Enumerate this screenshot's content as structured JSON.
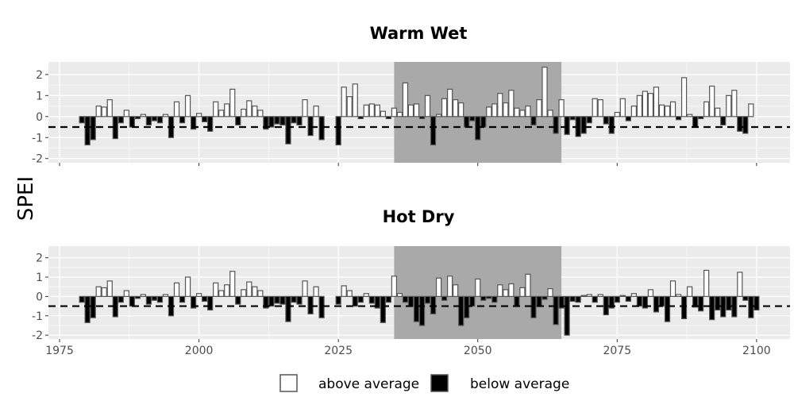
{
  "chart_data": {
    "type": "bar",
    "ylabel": "SPEI",
    "x_ticks": [
      1975,
      2000,
      2025,
      2050,
      2075,
      2100
    ],
    "x_range": [
      1973,
      2106
    ],
    "ylim": [
      -2.2,
      2.6
    ],
    "y_ticks": [
      -2,
      -1,
      0,
      1,
      2
    ],
    "threshold": -0.5,
    "highlight_range": [
      2035,
      2065
    ],
    "legend": {
      "above_label": "above average",
      "below_label": "below average"
    },
    "colors": {
      "above": "#ffffff",
      "below": "#000000",
      "bar_edge": "#555555",
      "panel_bg": "#ebebeb",
      "grid": "#ffffff",
      "highlight": "#a9a9a9",
      "threshold": "#000000"
    },
    "panels": [
      {
        "title": "Warm Wet",
        "segments": [
          {
            "start": 1979,
            "values": [
              -0.3,
              -1.35,
              -1.1,
              0.5,
              0.45,
              0.8,
              -1.05,
              -0.3,
              0.3,
              -0.5,
              -0.1,
              0.1,
              -0.4,
              -0.2,
              -0.3,
              0.1,
              -1.0,
              0.7,
              -0.3,
              1.0,
              -0.6,
              0.15,
              -0.25,
              -0.7,
              0.7,
              0.3,
              0.6,
              1.3,
              -0.4,
              0.35,
              0.75,
              0.5,
              0.3,
              -0.6,
              -0.5,
              -0.35,
              -0.4,
              -1.3,
              -0.3,
              -0.4,
              0.8,
              -0.9,
              0.5,
              -1.1
            ]
          },
          {
            "start": 2025,
            "values": [
              -1.35,
              1.4,
              0.95,
              1.55,
              -0.1,
              0.55,
              0.6,
              0.55,
              0.25,
              -0.1,
              0.4,
              0.2,
              1.6,
              0.55,
              0.6,
              -0.1,
              1.0,
              -1.35,
              0.1,
              0.85,
              1.3,
              0.8,
              0.65,
              -0.5,
              -0.2,
              -1.1,
              -0.5,
              0.45,
              0.6,
              1.1,
              0.65,
              1.25,
              0.4,
              0.3,
              0.5,
              -0.4,
              0.8,
              2.35,
              0.3,
              -0.8,
              0.8,
              -0.85,
              -0.15,
              -0.95,
              -0.8,
              -0.3,
              0.85,
              0.8,
              -0.35,
              -0.8,
              0.2,
              0.85,
              -0.2,
              0.5,
              1.0,
              1.2,
              1.1,
              1.4,
              0.55,
              0.5,
              0.7,
              -0.15,
              1.85,
              0.1,
              -0.5,
              -0.1,
              0.7,
              1.45,
              0.4,
              -0.4,
              1.0,
              1.25,
              -0.7,
              -0.8,
              0.6
            ]
          }
        ]
      },
      {
        "title": "Hot Dry",
        "segments": [
          {
            "start": 1979,
            "values": [
              -0.3,
              -1.35,
              -1.1,
              0.5,
              0.45,
              0.8,
              -1.05,
              -0.3,
              0.3,
              -0.5,
              -0.1,
              0.1,
              -0.4,
              -0.2,
              -0.3,
              0.1,
              -1.0,
              0.7,
              -0.3,
              1.0,
              -0.6,
              0.15,
              -0.25,
              -0.7,
              0.7,
              0.3,
              0.6,
              1.3,
              -0.4,
              0.35,
              0.75,
              0.5,
              0.3,
              -0.6,
              -0.5,
              -0.35,
              -0.4,
              -1.3,
              -0.3,
              -0.4,
              0.8,
              -0.9,
              0.5,
              -1.1
            ]
          },
          {
            "start": 2025,
            "values": [
              -0.4,
              0.55,
              0.3,
              -0.5,
              -0.3,
              0.15,
              -0.35,
              -0.6,
              -1.35,
              -0.3,
              1.05,
              0.15,
              -0.3,
              -0.5,
              -1.3,
              -1.5,
              -0.35,
              -0.9,
              0.95,
              -0.2,
              1.05,
              0.6,
              -1.5,
              -1.1,
              -0.5,
              0.9,
              -0.2,
              -0.1,
              -0.3,
              0.6,
              0.35,
              0.65,
              -0.5,
              0.45,
              1.15,
              -1.1,
              -0.5,
              -0.15,
              0.4,
              -1.45,
              -0.6,
              -2.0,
              -0.25,
              -0.3,
              0.05,
              0.1,
              -0.3,
              0.1,
              -0.95,
              -0.6,
              -0.3,
              0.05,
              -0.25,
              0.15,
              -0.5,
              -0.6,
              0.35,
              -0.8,
              -0.5,
              -1.3,
              0.8,
              0.1,
              -1.15,
              0.5,
              -0.55,
              -0.75,
              1.35,
              -1.2,
              -0.7,
              -1.05,
              -0.7,
              -1.05,
              1.25,
              -0.2,
              -1.1,
              -0.7
            ]
          }
        ]
      }
    ]
  }
}
